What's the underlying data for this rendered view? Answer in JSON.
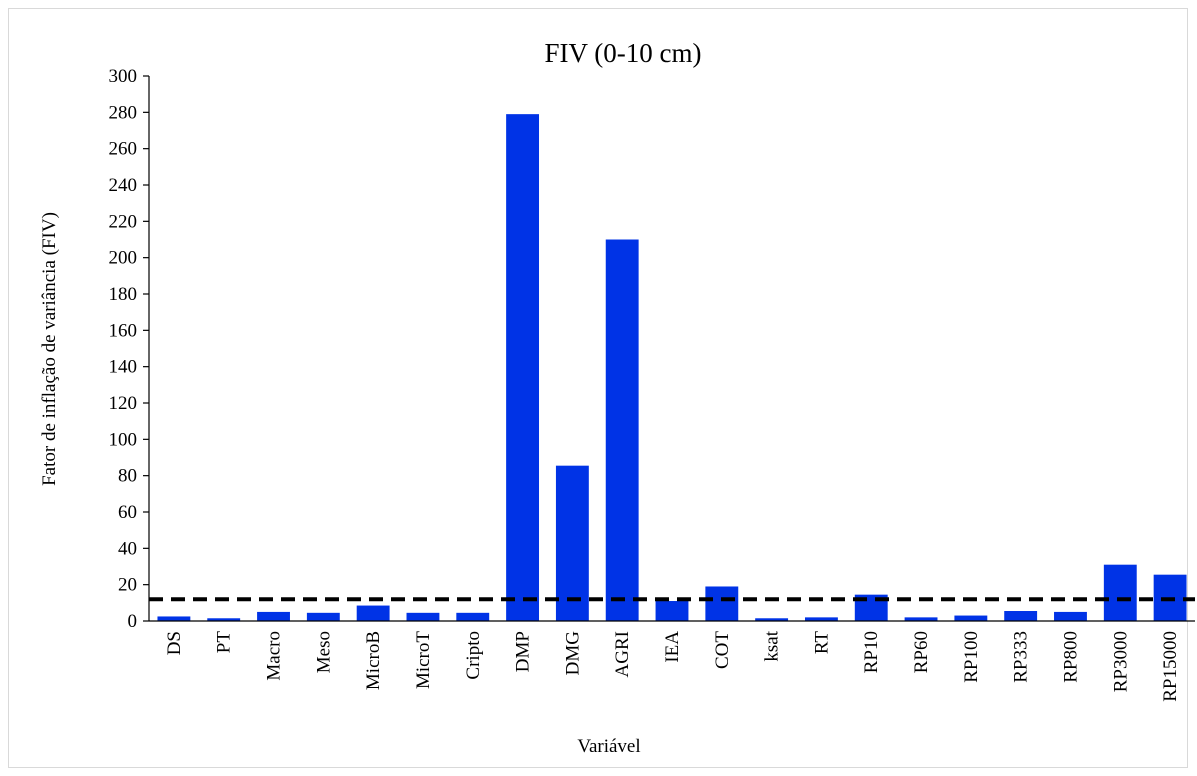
{
  "chart_data": {
    "type": "bar",
    "title": "FIV (0-10 cm)",
    "xlabel": "Variável",
    "ylabel": "Fator de inflação de variância (FIV)",
    "categories": [
      "DS",
      "PT",
      "Macro",
      "Meso",
      "MicroB",
      "MicroT",
      "Cripto",
      "DMP",
      "DMG",
      "AGRI",
      "IEA",
      "COT",
      "ksat",
      "RT",
      "RP10",
      "RP60",
      "RP100",
      "RP333",
      "RP800",
      "RP3000",
      "RP15000"
    ],
    "values": [
      2.5,
      1.5,
      5,
      4.5,
      8.5,
      4.5,
      4.5,
      279,
      85.5,
      210,
      11,
      19,
      1.5,
      2,
      14.5,
      2,
      3,
      5.5,
      5,
      31,
      25.5
    ],
    "reference_line": 12,
    "ylim": [
      0,
      300
    ],
    "yticks": [
      0,
      20,
      40,
      60,
      80,
      100,
      120,
      140,
      160,
      180,
      200,
      220,
      240,
      260,
      280,
      300
    ],
    "bar_color": "#0033e6",
    "reference_line_color": "#000000",
    "grid": false,
    "legend": "none"
  }
}
